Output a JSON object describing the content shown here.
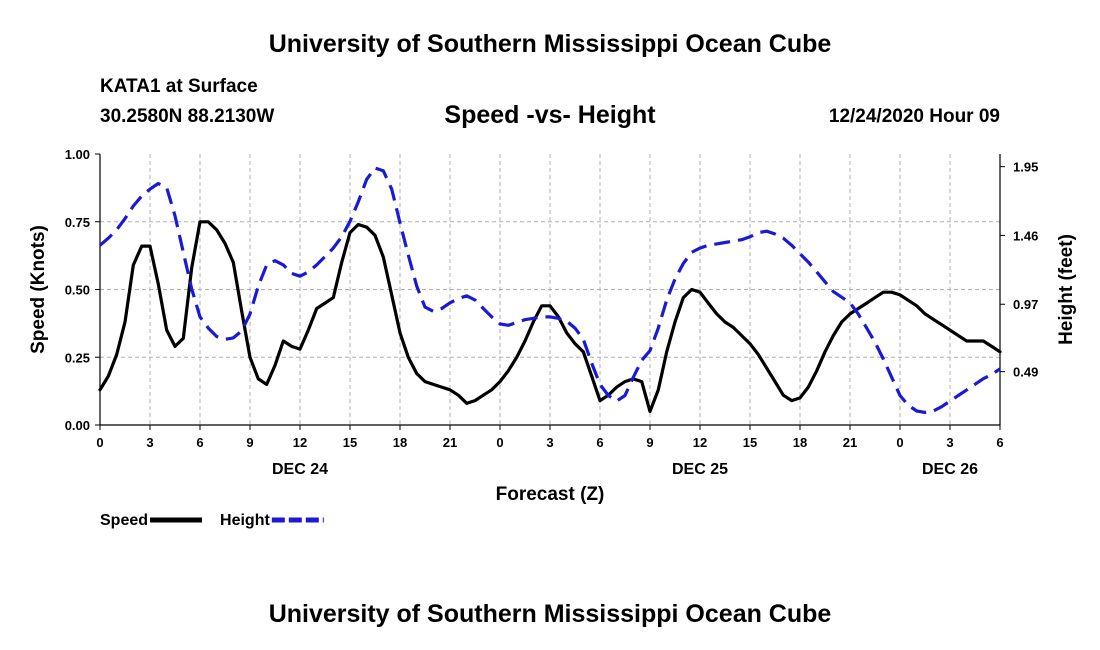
{
  "header": {
    "top_title": "University of Southern Mississippi Ocean Cube",
    "station": "KATA1 at Surface",
    "coords": "30.2580N 88.2130W",
    "chart_title": "Speed -vs- Height",
    "datetime": "12/24/2020 Hour 09"
  },
  "footer": {
    "bottom_title": "University of Southern Mississippi Ocean Cube"
  },
  "chart_data": {
    "type": "line",
    "title": "Speed -vs- Height",
    "xlabel": "Forecast (Z)",
    "ylabel": "Speed (Knots)",
    "y2label": "Height (feet)",
    "xlim": [
      0,
      54
    ],
    "ylim": [
      0,
      1.0
    ],
    "y2lim": [
      0.11,
      2.04
    ],
    "grid": true,
    "x_ticks": [
      0,
      3,
      6,
      9,
      12,
      15,
      18,
      21,
      24,
      27,
      30,
      33,
      36,
      39,
      42,
      45,
      48,
      51,
      54
    ],
    "x_tick_labels": [
      "0",
      "3",
      "6",
      "9",
      "12",
      "15",
      "18",
      "21",
      "0",
      "3",
      "6",
      "9",
      "12",
      "15",
      "18",
      "21",
      "0",
      "3",
      "6"
    ],
    "y_ticks": [
      0,
      0.25,
      0.5,
      0.75,
      1.0
    ],
    "y_tick_labels": [
      "0.00",
      "0.25",
      "0.50",
      "0.75",
      "1.00"
    ],
    "y2_ticks": [
      0.49,
      0.97,
      1.46,
      1.95
    ],
    "y2_tick_labels": [
      "0.49",
      "0.97",
      "1.46",
      "1.95"
    ],
    "date_labels": [
      {
        "x": 12,
        "label": "DEC 24"
      },
      {
        "x": 36,
        "label": "DEC 25"
      },
      {
        "x": 51,
        "label": "DEC 26"
      }
    ],
    "legend": {
      "position": "bottom-left"
    },
    "series": [
      {
        "name": "Speed",
        "axis": "left",
        "color": "#000000",
        "dash": "solid",
        "x": [
          0,
          0.5,
          1,
          1.5,
          2,
          2.5,
          3,
          3.5,
          4,
          4.5,
          5,
          5.5,
          6,
          6.5,
          7,
          7.5,
          8,
          8.5,
          9,
          9.5,
          10,
          10.5,
          11,
          11.5,
          12,
          12.5,
          13,
          13.5,
          14,
          14.5,
          15,
          15.5,
          16,
          16.5,
          17,
          17.5,
          18,
          18.5,
          19,
          19.5,
          20,
          20.5,
          21,
          21.5,
          22,
          22.5,
          23,
          23.5,
          24,
          24.5,
          25,
          25.5,
          26,
          26.5,
          27,
          27.5,
          28,
          28.5,
          29,
          29.5,
          30,
          30.5,
          31,
          31.5,
          32,
          32.5,
          33,
          33.5,
          34,
          34.5,
          35,
          35.5,
          36,
          36.5,
          37,
          37.5,
          38,
          38.5,
          39,
          39.5,
          40,
          40.5,
          41,
          41.5,
          42,
          42.5,
          43,
          43.5,
          44,
          44.5,
          45,
          45.5,
          46,
          46.5,
          47,
          47.5,
          48,
          48.5,
          49,
          49.5,
          50,
          50.5,
          51,
          51.5,
          52,
          52.5,
          53,
          53.5,
          54
        ],
        "values": [
          0.13,
          0.18,
          0.26,
          0.38,
          0.59,
          0.66,
          0.66,
          0.52,
          0.35,
          0.29,
          0.32,
          0.58,
          0.75,
          0.75,
          0.72,
          0.67,
          0.6,
          0.42,
          0.25,
          0.17,
          0.15,
          0.22,
          0.31,
          0.29,
          0.28,
          0.35,
          0.43,
          0.45,
          0.47,
          0.6,
          0.71,
          0.74,
          0.73,
          0.7,
          0.62,
          0.48,
          0.34,
          0.25,
          0.19,
          0.16,
          0.15,
          0.14,
          0.13,
          0.11,
          0.08,
          0.09,
          0.11,
          0.13,
          0.16,
          0.2,
          0.25,
          0.31,
          0.38,
          0.44,
          0.44,
          0.4,
          0.34,
          0.3,
          0.27,
          0.18,
          0.09,
          0.11,
          0.14,
          0.16,
          0.17,
          0.16,
          0.05,
          0.13,
          0.27,
          0.38,
          0.47,
          0.5,
          0.49,
          0.45,
          0.41,
          0.38,
          0.36,
          0.33,
          0.3,
          0.26,
          0.21,
          0.16,
          0.11,
          0.09,
          0.1,
          0.14,
          0.2,
          0.27,
          0.33,
          0.38,
          0.41,
          0.43,
          0.45,
          0.47,
          0.49,
          0.49,
          0.48,
          0.46,
          0.44,
          0.41,
          0.39,
          0.37,
          0.35,
          0.33,
          0.31,
          0.31,
          0.31,
          0.29,
          0.27
        ]
      },
      {
        "name": "Height",
        "axis": "right",
        "color": "#1a1ad6",
        "dash": "dashed",
        "x": [
          0,
          0.5,
          1,
          1.5,
          2,
          2.5,
          3,
          3.5,
          4,
          4.5,
          5,
          5.5,
          6,
          6.5,
          7,
          7.5,
          8,
          8.5,
          9,
          9.5,
          10,
          10.5,
          11,
          11.5,
          12,
          12.5,
          13,
          13.5,
          14,
          14.5,
          15,
          15.5,
          16,
          16.5,
          17,
          17.5,
          18,
          18.5,
          19,
          19.5,
          20,
          20.5,
          21,
          21.5,
          22,
          22.5,
          23,
          23.5,
          24,
          24.5,
          25,
          25.5,
          26,
          26.5,
          27,
          27.5,
          28,
          28.5,
          29,
          29.5,
          30,
          30.5,
          31,
          31.5,
          32,
          32.5,
          33,
          33.5,
          34,
          34.5,
          35,
          35.5,
          36,
          36.5,
          37,
          37.5,
          38,
          38.5,
          39,
          39.5,
          40,
          40.5,
          41,
          41.5,
          42,
          42.5,
          43,
          43.5,
          44,
          44.5,
          45,
          45.5,
          46,
          46.5,
          47,
          47.5,
          48,
          48.5,
          49,
          49.5,
          50,
          50.5,
          51,
          51.5,
          52,
          52.5,
          53,
          53.5,
          54
        ],
        "values": [
          1.39,
          1.44,
          1.5,
          1.58,
          1.67,
          1.74,
          1.79,
          1.83,
          1.8,
          1.6,
          1.34,
          1.08,
          0.88,
          0.8,
          0.74,
          0.72,
          0.73,
          0.78,
          0.9,
          1.1,
          1.25,
          1.28,
          1.25,
          1.19,
          1.17,
          1.2,
          1.25,
          1.31,
          1.37,
          1.45,
          1.56,
          1.7,
          1.86,
          1.94,
          1.92,
          1.79,
          1.55,
          1.32,
          1.1,
          0.95,
          0.92,
          0.94,
          0.98,
          1.01,
          1.03,
          1.0,
          0.94,
          0.88,
          0.83,
          0.82,
          0.84,
          0.86,
          0.87,
          0.88,
          0.88,
          0.87,
          0.85,
          0.8,
          0.72,
          0.55,
          0.4,
          0.32,
          0.28,
          0.32,
          0.45,
          0.57,
          0.64,
          0.8,
          1.0,
          1.15,
          1.26,
          1.34,
          1.37,
          1.39,
          1.4,
          1.41,
          1.42,
          1.43,
          1.45,
          1.48,
          1.49,
          1.47,
          1.44,
          1.39,
          1.33,
          1.27,
          1.2,
          1.13,
          1.06,
          1.02,
          0.98,
          0.9,
          0.8,
          0.7,
          0.58,
          0.45,
          0.32,
          0.25,
          0.21,
          0.2,
          0.21,
          0.24,
          0.28,
          0.32,
          0.36,
          0.4,
          0.44,
          0.47,
          0.51
        ]
      }
    ]
  }
}
